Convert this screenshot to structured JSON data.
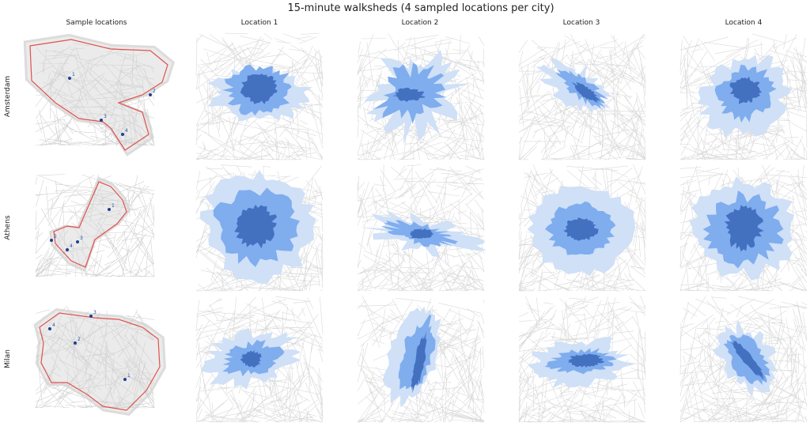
{
  "title": "15-minute walksheds (4 sampled locations per city)",
  "columns": [
    "Sample locations",
    "Location 1",
    "Location 2",
    "Location 3",
    "Location 4"
  ],
  "rows": [
    {
      "label": "Amsterdam",
      "points": [
        "1",
        "2",
        "3",
        "4"
      ]
    },
    {
      "label": "Athens",
      "points": [
        "1",
        "2",
        "3",
        "4"
      ]
    },
    {
      "label": "Milan",
      "points": [
        "1",
        "2",
        "3",
        "4"
      ]
    }
  ]
}
